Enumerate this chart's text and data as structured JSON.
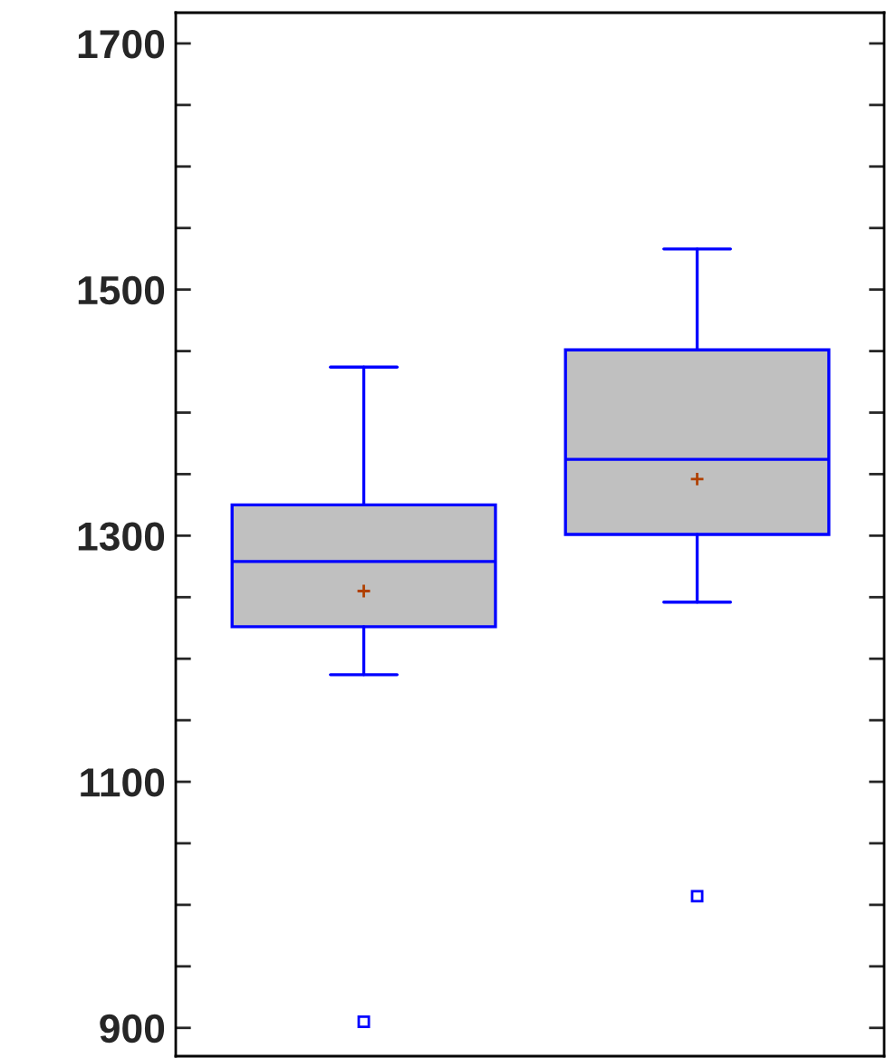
{
  "chart_data": {
    "type": "box",
    "categories": [
      null,
      null
    ],
    "boxes": [
      {
        "low": 1187,
        "q1": 1226,
        "median": 1279,
        "q3": 1325,
        "high": 1437,
        "mean": 1255,
        "outliers": [
          905
        ]
      },
      {
        "low": 1246,
        "q1": 1301,
        "median": 1362,
        "q3": 1451,
        "high": 1533,
        "mean": 1346,
        "outliers": [
          1007
        ]
      }
    ],
    "color": "#0000ff",
    "ylim": [
      877,
      1725
    ],
    "yticks": [
      900,
      {
        "value": 950,
        "label": null
      },
      {
        "value": 1000,
        "label": null
      },
      {
        "value": 1050,
        "label": null
      },
      1100,
      {
        "value": 1150,
        "label": null
      },
      {
        "value": 1200,
        "label": null
      },
      {
        "value": 1250,
        "label": null
      },
      1300,
      {
        "value": 1350,
        "label": null
      },
      {
        "value": 1400,
        "label": null
      },
      {
        "value": 1450,
        "label": null
      },
      1500,
      {
        "value": 1550,
        "label": null
      },
      {
        "value": 1600,
        "label": null
      },
      {
        "value": 1650,
        "label": null
      },
      1700
    ],
    "grid": false
  }
}
